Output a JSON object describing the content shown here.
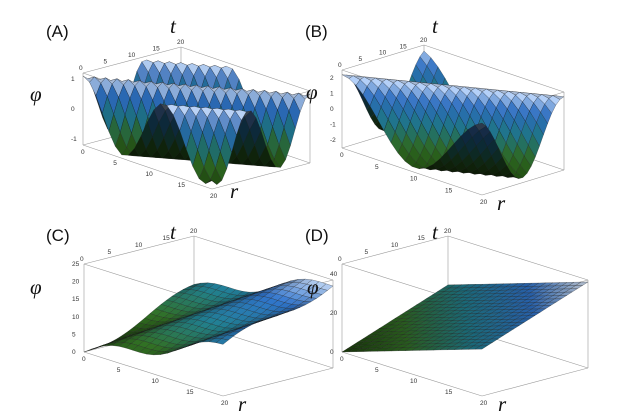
{
  "chart_data": [
    {
      "type": "surface",
      "panel_label": "(A)",
      "axis_labels": {
        "x": "r",
        "y": "t",
        "z": "φ"
      },
      "x_ticks": [
        "0",
        "5",
        "10",
        "15",
        "20"
      ],
      "y_ticks": [
        "0",
        "5",
        "10",
        "15",
        "20"
      ],
      "z_ticks": [
        "-1",
        "0",
        "1"
      ],
      "xlim": [
        0,
        20
      ],
      "ylim": [
        0,
        20
      ],
      "zlim": [
        -1.2,
        1.2
      ],
      "surface": "approximately 1.1·cos(0.5·(r − t)), three oblique wave crests",
      "colormap": [
        "#1a3a0a",
        "#2f6b22",
        "#1f7a8c",
        "#2e6fc4",
        "#e8ecf5"
      ]
    },
    {
      "type": "surface",
      "panel_label": "(B)",
      "axis_labels": {
        "x": "r",
        "y": "t",
        "z": "φ"
      },
      "x_ticks": [
        "0",
        "5",
        "10",
        "15",
        "20"
      ],
      "y_ticks": [
        "0",
        "5",
        "10",
        "15",
        "20"
      ],
      "z_ticks": [
        "-2",
        "-1",
        "0",
        "1",
        "2"
      ],
      "xlim": [
        0,
        20
      ],
      "ylim": [
        0,
        20
      ],
      "zlim": [
        -2.5,
        2.5
      ],
      "surface": "approximately 2.2·cos(0.3·(r − t)), one broad oblique trough",
      "colormap": [
        "#1a3a0a",
        "#2f6b22",
        "#1f7a8c",
        "#2e6fc4",
        "#e8ecf5"
      ]
    },
    {
      "type": "surface",
      "panel_label": "(C)",
      "axis_labels": {
        "x": "r",
        "y": "t",
        "z": "φ"
      },
      "x_ticks": [
        "0",
        "5",
        "10",
        "15",
        "20"
      ],
      "y_ticks": [
        "0",
        "5",
        "10",
        "15",
        "20"
      ],
      "z_ticks": [
        "0",
        "5",
        "10",
        "15",
        "20",
        "25"
      ],
      "xlim": [
        0,
        20
      ],
      "ylim": [
        0,
        20
      ],
      "zlim": [
        0,
        25
      ],
      "surface": "rising plane ≈ 0.7·r + 0.5·t with gentle oblique ripples",
      "colormap": [
        "#1a3a0a",
        "#2f6b22",
        "#1f7a8c",
        "#2e6fc4",
        "#e8ecf5"
      ]
    },
    {
      "type": "surface",
      "panel_label": "(D)",
      "axis_labels": {
        "x": "r",
        "y": "t",
        "z": "φ"
      },
      "x_ticks": [
        "0",
        "5",
        "10",
        "15",
        "20"
      ],
      "y_ticks": [
        "0",
        "5",
        "10",
        "15",
        "20"
      ],
      "z_ticks": [
        "0",
        "20",
        "40"
      ],
      "xlim": [
        0,
        20
      ],
      "ylim": [
        0,
        20
      ],
      "zlim": [
        0,
        45
      ],
      "surface": "smooth rising plane ≈ 1.2·r + 1.0·t",
      "colormap": [
        "#1a3a0a",
        "#2f6b22",
        "#1f7a8c",
        "#2e6fc4",
        "#e8ecf5"
      ]
    }
  ]
}
